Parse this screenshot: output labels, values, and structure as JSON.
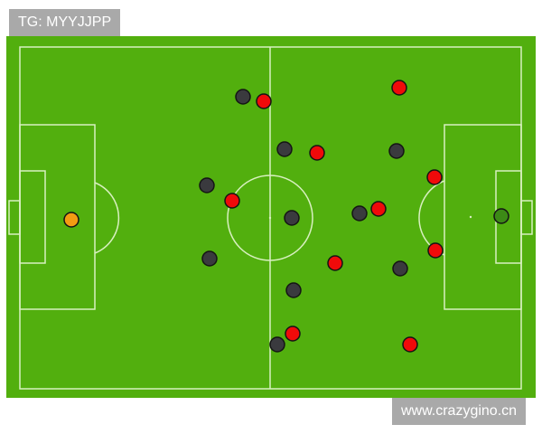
{
  "labels": {
    "top_left": "TG: MYYJJPP",
    "bottom_right": "www.crazygino.cn"
  },
  "colors": {
    "pitch": "#52af0e",
    "lines": "#d8f0c0",
    "team_dark": "#3a3a3e",
    "team_red": "#f00a0a",
    "goalkeeper_left": "#f39c12",
    "goalkeeper_right": "#3c8a16",
    "outline": "#141414"
  }
}
